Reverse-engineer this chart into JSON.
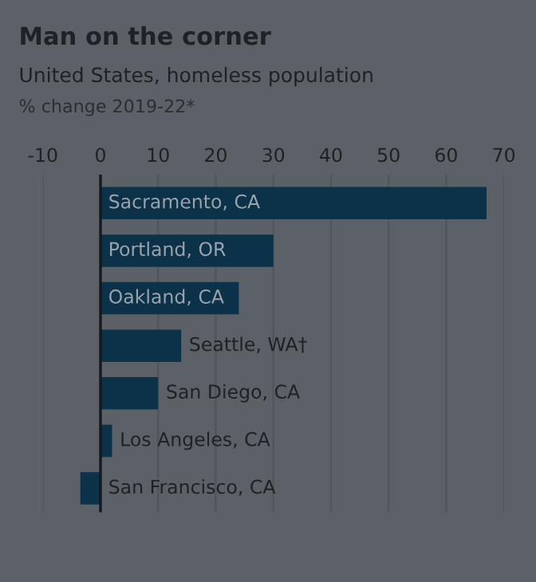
{
  "chart_data": {
    "type": "bar",
    "orientation": "horizontal",
    "title": "Man on the corner",
    "subtitle": "United States, homeless population",
    "xlabel": "% change 2019-22*",
    "categories": [
      "Sacramento, CA",
      "Portland, OR",
      "Oakland, CA",
      "Seattle, WA†",
      "San Diego, CA",
      "Los Angeles, CA",
      "San Francisco, CA"
    ],
    "values": [
      67,
      30,
      24,
      14,
      10,
      2,
      -3.5
    ],
    "color": "#0c3249",
    "xlim": [
      -10,
      70
    ],
    "xticks": [
      -10,
      0,
      10,
      20,
      30,
      40,
      50,
      60,
      70
    ],
    "grid": "x"
  }
}
